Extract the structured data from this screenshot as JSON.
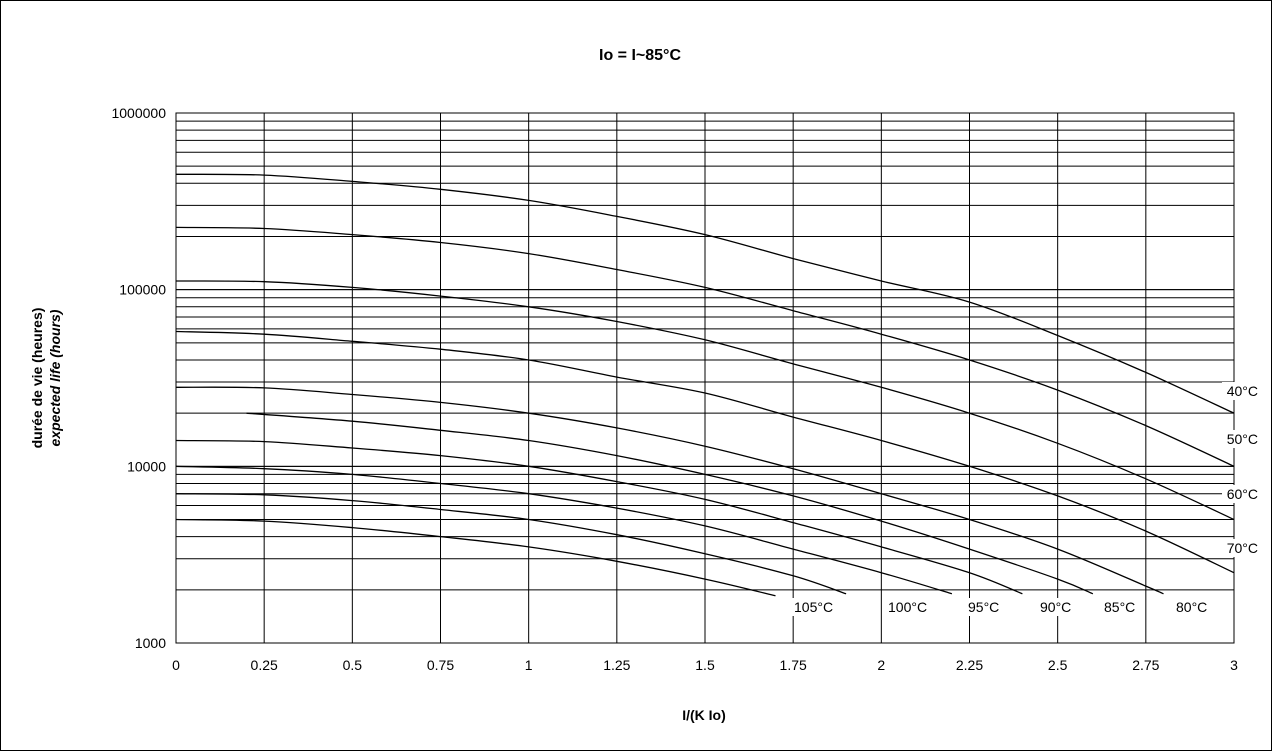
{
  "chart_data": {
    "type": "line",
    "title": "Io = I~85°C",
    "xlabel": "I/(K Io)",
    "ylabel_line1": "durée de vie (heures)",
    "ylabel_line2": "expected life (hours)",
    "yscale": "log",
    "xlim": [
      0,
      3
    ],
    "ylim": [
      1000,
      1000000
    ],
    "grid": true,
    "x_ticks": [
      "0",
      "0.25",
      "0.5",
      "0.75",
      "1",
      "1.25",
      "1.5",
      "1.75",
      "2",
      "2.25",
      "2.5",
      "2.75",
      "3"
    ],
    "y_ticks": [
      "1000",
      "10000",
      "100000",
      "1000000"
    ],
    "series": [
      {
        "name": "40°C",
        "points": [
          [
            0,
            450000
          ],
          [
            0.25,
            445000
          ],
          [
            0.5,
            410000
          ],
          [
            0.75,
            370000
          ],
          [
            1,
            320000
          ],
          [
            1.25,
            260000
          ],
          [
            1.5,
            205000
          ],
          [
            1.75,
            150000
          ],
          [
            2,
            112000
          ],
          [
            2.25,
            85000
          ],
          [
            2.5,
            55000
          ],
          [
            2.75,
            34000
          ],
          [
            3,
            20000
          ]
        ]
      },
      {
        "name": "50°C",
        "points": [
          [
            0,
            225000
          ],
          [
            0.25,
            222000
          ],
          [
            0.5,
            205000
          ],
          [
            0.75,
            185000
          ],
          [
            1,
            160000
          ],
          [
            1.25,
            130000
          ],
          [
            1.5,
            103000
          ],
          [
            1.75,
            76000
          ],
          [
            2,
            56000
          ],
          [
            2.25,
            40000
          ],
          [
            2.5,
            27000
          ],
          [
            2.75,
            17000
          ],
          [
            3,
            10000
          ]
        ]
      },
      {
        "name": "60°C",
        "points": [
          [
            0,
            112000
          ],
          [
            0.25,
            111000
          ],
          [
            0.5,
            103000
          ],
          [
            0.75,
            92000
          ],
          [
            1,
            80000
          ],
          [
            1.25,
            66000
          ],
          [
            1.5,
            52000
          ],
          [
            1.75,
            38000
          ],
          [
            2,
            28000
          ],
          [
            2.25,
            20000
          ],
          [
            2.5,
            13500
          ],
          [
            2.75,
            8500
          ],
          [
            3,
            5000
          ]
        ]
      },
      {
        "name": "70°C",
        "points": [
          [
            0,
            58000
          ],
          [
            0.25,
            56000
          ],
          [
            0.5,
            51000
          ],
          [
            0.75,
            46000
          ],
          [
            1,
            40000
          ],
          [
            1.25,
            32000
          ],
          [
            1.5,
            26000
          ],
          [
            1.75,
            19000
          ],
          [
            2,
            14000
          ],
          [
            2.25,
            10000
          ],
          [
            2.5,
            6800
          ],
          [
            2.75,
            4300
          ],
          [
            3,
            2500
          ]
        ]
      },
      {
        "name": "80°C",
        "points": [
          [
            0,
            28000
          ],
          [
            0.25,
            27800
          ],
          [
            0.5,
            25500
          ],
          [
            0.75,
            23000
          ],
          [
            1,
            20000
          ],
          [
            1.25,
            16500
          ],
          [
            1.5,
            13000
          ],
          [
            1.75,
            9700
          ],
          [
            2,
            7000
          ],
          [
            2.25,
            5000
          ],
          [
            2.5,
            3400
          ],
          [
            2.75,
            2100
          ],
          [
            2.8,
            1900
          ]
        ]
      },
      {
        "name": "85°C",
        "points": [
          [
            0.2,
            20000
          ],
          [
            0.5,
            18000
          ],
          [
            0.75,
            16000
          ],
          [
            1,
            14000
          ],
          [
            1.25,
            11500
          ],
          [
            1.5,
            9000
          ],
          [
            1.75,
            6800
          ],
          [
            2,
            4900
          ],
          [
            2.25,
            3400
          ],
          [
            2.5,
            2300
          ],
          [
            2.6,
            1900
          ]
        ]
      },
      {
        "name": "90°C",
        "points": [
          [
            0,
            14000
          ],
          [
            0.25,
            13800
          ],
          [
            0.5,
            12700
          ],
          [
            0.75,
            11500
          ],
          [
            1,
            10000
          ],
          [
            1.25,
            8200
          ],
          [
            1.5,
            6500
          ],
          [
            1.75,
            4800
          ],
          [
            2,
            3500
          ],
          [
            2.25,
            2500
          ],
          [
            2.4,
            1900
          ]
        ]
      },
      {
        "name": "95°C",
        "points": [
          [
            0,
            10000
          ],
          [
            0.25,
            9700
          ],
          [
            0.5,
            9000
          ],
          [
            0.75,
            8000
          ],
          [
            1,
            7000
          ],
          [
            1.25,
            5800
          ],
          [
            1.5,
            4600
          ],
          [
            1.75,
            3400
          ],
          [
            2,
            2500
          ],
          [
            2.2,
            1900
          ]
        ]
      },
      {
        "name": "100°C",
        "points": [
          [
            0,
            7000
          ],
          [
            0.25,
            6900
          ],
          [
            0.5,
            6400
          ],
          [
            0.75,
            5700
          ],
          [
            1,
            5000
          ],
          [
            1.25,
            4100
          ],
          [
            1.5,
            3200
          ],
          [
            1.75,
            2400
          ],
          [
            1.9,
            1900
          ]
        ]
      },
      {
        "name": "105°C",
        "points": [
          [
            0,
            5000
          ],
          [
            0.25,
            4900
          ],
          [
            0.5,
            4500
          ],
          [
            0.75,
            4000
          ],
          [
            1,
            3500
          ],
          [
            1.25,
            2900
          ],
          [
            1.5,
            2300
          ],
          [
            1.7,
            1850
          ]
        ]
      }
    ]
  }
}
